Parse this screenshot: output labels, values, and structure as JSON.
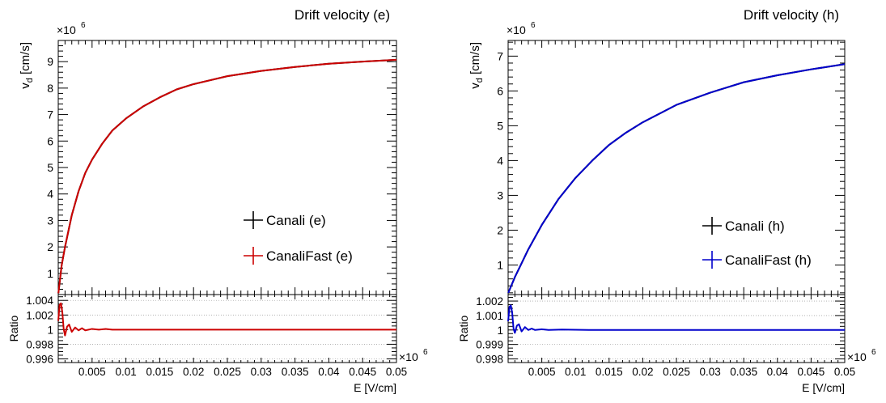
{
  "chart_data": [
    {
      "type": "line",
      "title": "Drift velocity (e)",
      "xlabel": "E [V/cm]",
      "ylabel": "v_d [cm/s]",
      "x_multiplier_label": "×10^6",
      "y_multiplier_label": "×10^6",
      "xlim": [
        0,
        0.05
      ],
      "ylim": [
        0.2,
        9.8
      ],
      "x_ticks": [
        0.005,
        0.01,
        0.015,
        0.02,
        0.025,
        0.03,
        0.035,
        0.04,
        0.045,
        0.05
      ],
      "x_tick_labels": [
        "0.005",
        "0.01",
        "0.015",
        "0.02",
        "0.025",
        "0.03",
        "0.035",
        "0.04",
        "0.045",
        "0.05"
      ],
      "y_ticks": [
        1,
        2,
        3,
        4,
        5,
        6,
        7,
        8,
        9
      ],
      "y_tick_labels": [
        "1",
        "2",
        "3",
        "4",
        "5",
        "6",
        "7",
        "8",
        "9"
      ],
      "series": [
        {
          "name": "Canali (e)",
          "color": "#000000",
          "x": [
            2e-05,
            0.0005,
            0.001,
            0.002,
            0.003,
            0.004,
            0.005,
            0.0065,
            0.008,
            0.01,
            0.0125,
            0.015,
            0.0175,
            0.02,
            0.025,
            0.03,
            0.035,
            0.04,
            0.045,
            0.05
          ],
          "y": [
            0.25,
            1.3,
            2.0,
            3.2,
            4.1,
            4.8,
            5.3,
            5.9,
            6.4,
            6.85,
            7.3,
            7.65,
            7.95,
            8.15,
            8.45,
            8.65,
            8.8,
            8.92,
            9.0,
            9.07
          ]
        },
        {
          "name": "CanaliFast (e)",
          "color": "#cc0000",
          "x": [
            2e-05,
            0.0005,
            0.001,
            0.002,
            0.003,
            0.004,
            0.005,
            0.0065,
            0.008,
            0.01,
            0.0125,
            0.015,
            0.0175,
            0.02,
            0.025,
            0.03,
            0.035,
            0.04,
            0.045,
            0.05
          ],
          "y": [
            0.25,
            1.3,
            2.0,
            3.2,
            4.1,
            4.8,
            5.3,
            5.9,
            6.4,
            6.85,
            7.3,
            7.65,
            7.95,
            8.15,
            8.45,
            8.65,
            8.8,
            8.92,
            9.0,
            9.07
          ]
        }
      ],
      "legend_position": "bottom-right",
      "ratio": {
        "ylabel": "Ratio",
        "ylim": [
          0.9955,
          1.0048
        ],
        "y_ticks": [
          0.996,
          0.998,
          1,
          1.002,
          1.004
        ],
        "y_tick_labels": [
          "0.996",
          "0.998",
          "1",
          "1.002",
          "1.004"
        ],
        "color": "#cc0000",
        "x": [
          0.0,
          0.0002,
          0.0004,
          0.0006,
          0.0008,
          0.001,
          0.0013,
          0.0016,
          0.002,
          0.0025,
          0.003,
          0.0035,
          0.004,
          0.005,
          0.006,
          0.007,
          0.008,
          0.009,
          0.05
        ],
        "y": [
          1.0012,
          1.0034,
          1.0036,
          1.0024,
          1.0001,
          0.9992,
          1.0004,
          1.0007,
          0.9997,
          1.0003,
          0.9999,
          1.0002,
          0.9999,
          1.0001,
          1.0,
          1.0001,
          1.0,
          1.0,
          1.0
        ]
      }
    },
    {
      "type": "line",
      "title": "Drift velocity (h)",
      "xlabel": "E [V/cm]",
      "ylabel": "v_d [cm/s]",
      "x_multiplier_label": "×10^6",
      "y_multiplier_label": "×10^6",
      "xlim": [
        0,
        0.05
      ],
      "ylim": [
        0.15,
        7.45
      ],
      "x_ticks": [
        0.005,
        0.01,
        0.015,
        0.02,
        0.025,
        0.03,
        0.035,
        0.04,
        0.045,
        0.05
      ],
      "x_tick_labels": [
        "0.005",
        "0.01",
        "0.015",
        "0.02",
        "0.025",
        "0.03",
        "0.035",
        "0.04",
        "0.045",
        "0.05"
      ],
      "y_ticks": [
        1,
        2,
        3,
        4,
        5,
        6,
        7
      ],
      "y_tick_labels": [
        "1",
        "2",
        "3",
        "4",
        "5",
        "6",
        "7"
      ],
      "series": [
        {
          "name": "Canali (h)",
          "color": "#000000",
          "x": [
            2e-05,
            0.001,
            0.002,
            0.003,
            0.005,
            0.0075,
            0.01,
            0.0125,
            0.015,
            0.0175,
            0.02,
            0.025,
            0.03,
            0.035,
            0.04,
            0.045,
            0.05
          ],
          "y": [
            0.2,
            0.65,
            1.05,
            1.45,
            2.15,
            2.9,
            3.5,
            4.0,
            4.45,
            4.8,
            5.1,
            5.6,
            5.95,
            6.25,
            6.45,
            6.62,
            6.77
          ]
        },
        {
          "name": "CanaliFast (h)",
          "color": "#0000cc",
          "x": [
            2e-05,
            0.001,
            0.002,
            0.003,
            0.005,
            0.0075,
            0.01,
            0.0125,
            0.015,
            0.0175,
            0.02,
            0.025,
            0.03,
            0.035,
            0.04,
            0.045,
            0.05
          ],
          "y": [
            0.2,
            0.65,
            1.05,
            1.45,
            2.15,
            2.9,
            3.5,
            4.0,
            4.45,
            4.8,
            5.1,
            5.6,
            5.95,
            6.25,
            6.45,
            6.62,
            6.77
          ]
        }
      ],
      "legend_position": "bottom-right",
      "ratio": {
        "ylabel": "Ratio",
        "ylim": [
          0.99775,
          1.00245
        ],
        "y_ticks": [
          0.998,
          0.999,
          1,
          1.001,
          1.002
        ],
        "y_tick_labels": [
          "0.998",
          "0.999",
          "1",
          "1.001",
          "1.002"
        ],
        "color": "#0000cc",
        "x": [
          0.0,
          0.0002,
          0.0004,
          0.0006,
          0.0008,
          0.001,
          0.0013,
          0.0016,
          0.002,
          0.0025,
          0.003,
          0.0035,
          0.004,
          0.005,
          0.006,
          0.008,
          0.012,
          0.018,
          0.023,
          0.05
        ],
        "y": [
          1.0006,
          1.0016,
          1.0017,
          1.0012,
          1.0001,
          0.9998,
          1.0003,
          1.0004,
          0.9999,
          1.0002,
          1.0,
          1.0001,
          1.0,
          1.00005,
          1.0,
          1.00003,
          1.0,
          1.0,
          1.0,
          1.0
        ]
      }
    }
  ]
}
